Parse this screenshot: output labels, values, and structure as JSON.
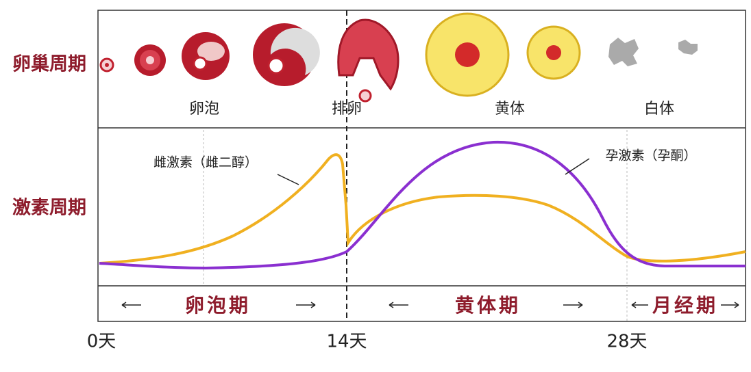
{
  "ovary_cycle": {
    "label": "卵巢周期",
    "stages": [
      "卵泡",
      "排卵",
      "黄体",
      "白体"
    ]
  },
  "hormone_cycle": {
    "label": "激素周期",
    "curves": [
      "雌激素（雌二醇）",
      "孕激素（孕酮）"
    ]
  },
  "phases": [
    "卵泡期",
    "黄体期",
    "月经期"
  ],
  "timeline": [
    "0天",
    "14天",
    "28天"
  ]
}
